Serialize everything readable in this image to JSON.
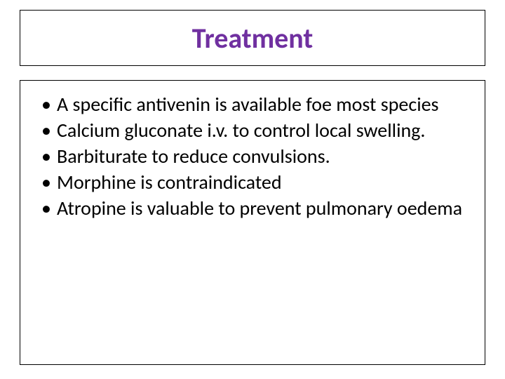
{
  "slide": {
    "title": "Treatment",
    "title_color": "#7030a0",
    "title_fontsize": 40,
    "title_fontweight": 700,
    "border_color": "#000000",
    "background_color": "#ffffff",
    "body_fontsize": 28,
    "body_color": "#000000",
    "bullet_char": "•",
    "bullets": [
      "A specific antivenin is available foe most species",
      "Calcium gluconate i.v. to control local swelling.",
      "Barbiturate to reduce convulsions.",
      "Morphine is contraindicated",
      "Atropine is valuable to prevent pulmonary oedema"
    ]
  }
}
